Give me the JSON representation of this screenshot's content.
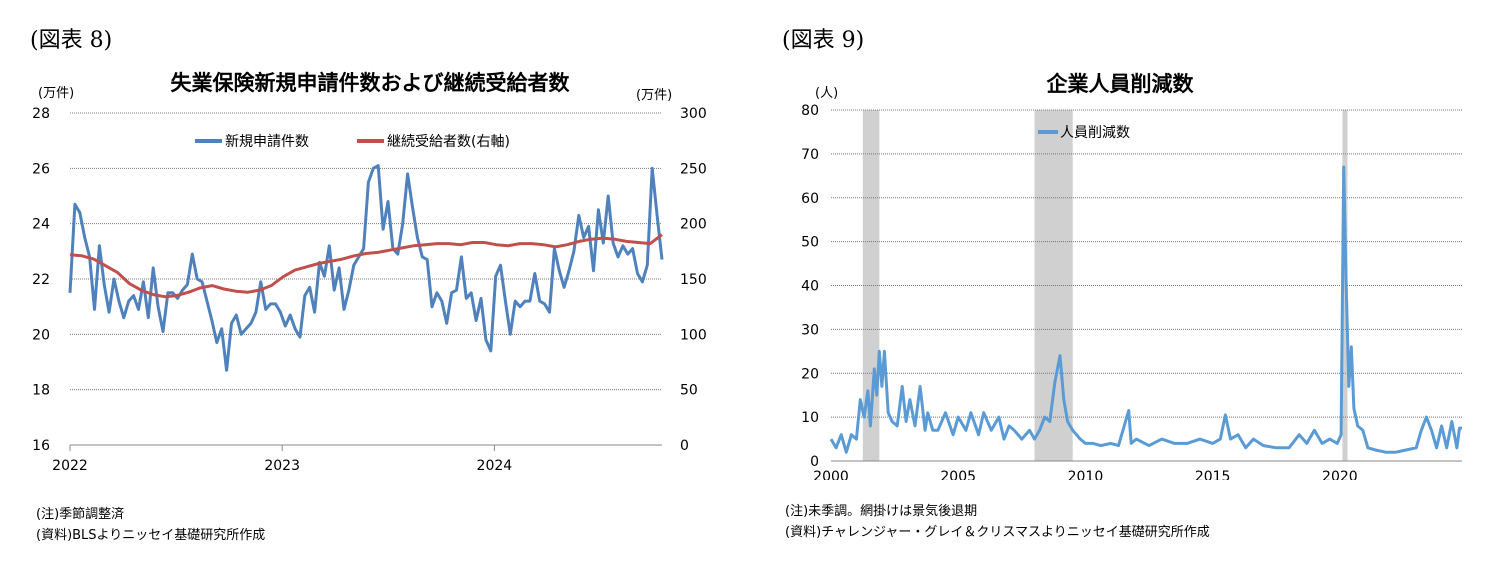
{
  "figures": {
    "left_label": "(図表 8)",
    "right_label": "(図表 9)"
  },
  "notes": {
    "left": [
      "(注)季節調整済",
      "(資料)BLSよりニッセイ基礎研究所作成"
    ],
    "right": [
      "(注)未季調。網掛けは景気後退期",
      "(資料)チャレンジャー・グレイ＆クリスマスよりニッセイ基礎研究所作成"
    ]
  },
  "colors": {
    "blue": "#4f81bd",
    "red": "#c0504d",
    "light_blue": "#5b9bd5",
    "shade": "#d0d0d0"
  },
  "chart_data": [
    {
      "type": "line",
      "title": "失業保険新規申請件数および継続受給者数",
      "ylabel": "(万件)",
      "y2label": "(万件)",
      "ylim": [
        16,
        28
      ],
      "y2lim": [
        0,
        300
      ],
      "yticks": [
        "16",
        "18",
        "20",
        "22",
        "24",
        "26",
        "28"
      ],
      "y2ticks": [
        "0",
        "50",
        "100",
        "150",
        "200",
        "250",
        "300"
      ],
      "xlim": [
        2022,
        2024.79
      ],
      "xticks": [
        "2022",
        "2023",
        "2024"
      ],
      "grid": true,
      "legend": "top-center",
      "series": [
        {
          "name": "新規申請件数",
          "axis": "left",
          "color": "#4f81bd",
          "x_start": 2022,
          "x_end": 2024.79,
          "values": [
            21.5,
            24.7,
            24.4,
            23.5,
            22.8,
            20.9,
            23.2,
            21.8,
            20.8,
            22.0,
            21.2,
            20.6,
            21.2,
            21.4,
            20.9,
            21.9,
            20.6,
            22.4,
            21.0,
            20.1,
            21.5,
            21.5,
            21.3,
            21.6,
            21.8,
            22.9,
            22.0,
            21.9,
            21.2,
            20.5,
            19.7,
            20.2,
            18.7,
            20.4,
            20.7,
            20.0,
            20.2,
            20.4,
            20.8,
            21.9,
            20.9,
            21.1,
            21.1,
            20.8,
            20.3,
            20.7,
            20.2,
            19.9,
            21.4,
            21.7,
            20.8,
            22.6,
            22.1,
            23.2,
            21.6,
            22.4,
            20.9,
            21.6,
            22.5,
            22.8,
            23.1,
            25.5,
            26.0,
            26.1,
            23.8,
            24.8,
            23.1,
            22.9,
            24.0,
            25.8,
            24.6,
            23.5,
            22.8,
            22.7,
            21.0,
            21.5,
            21.2,
            20.4,
            21.5,
            21.6,
            22.8,
            21.3,
            21.5,
            20.5,
            21.3,
            19.8,
            19.4,
            22.1,
            22.5,
            21.2,
            20.0,
            21.2,
            21.0,
            21.2,
            21.2,
            22.2,
            21.2,
            21.1,
            20.8,
            23.1,
            22.3,
            21.7,
            22.3,
            23.0,
            24.3,
            23.5,
            23.9,
            22.3,
            24.5,
            23.3,
            25.0,
            23.3,
            22.8,
            23.2,
            22.9,
            23.1,
            22.2,
            21.9,
            22.5,
            26.0,
            24.3,
            22.7
          ]
        },
        {
          "name": "継続受給者数(右軸)",
          "axis": "right",
          "color": "#c0504d",
          "x_start": 2022,
          "x_end": 2024.79,
          "values": [
            172,
            171,
            168,
            162,
            156,
            146,
            140,
            136,
            134,
            135,
            138,
            142,
            144,
            141,
            139,
            138,
            140,
            144,
            152,
            158,
            161,
            164,
            166,
            168,
            171,
            173,
            174,
            176,
            178,
            180,
            181,
            182,
            182,
            181,
            183,
            183,
            181,
            180,
            182,
            182,
            181,
            179,
            181,
            184,
            186,
            187,
            186,
            184,
            183,
            182,
            190
          ]
        }
      ]
    },
    {
      "type": "line",
      "title": "企業人員削減数",
      "ylabel": "(人)",
      "ylim": [
        0,
        80
      ],
      "yticks": [
        "0",
        "10",
        "20",
        "30",
        "40",
        "50",
        "60",
        "70",
        "80"
      ],
      "xlim": [
        2000,
        2024.8
      ],
      "xticks": [
        "2000",
        "2005",
        "2010",
        "2015",
        "2020"
      ],
      "grid": true,
      "legend": "top-center",
      "recessions": [
        [
          2001.25,
          2001.9
        ],
        [
          2008.0,
          2009.5
        ],
        [
          2020.1,
          2020.3
        ]
      ],
      "series": [
        {
          "name": "人員削減数",
          "color": "#5b9bd5",
          "x": [
            2000,
            2000.2,
            2000.4,
            2000.6,
            2000.8,
            2001,
            2001.15,
            2001.3,
            2001.45,
            2001.55,
            2001.7,
            2001.8,
            2001.9,
            2002,
            2002.1,
            2002.25,
            2002.4,
            2002.6,
            2002.8,
            2002.95,
            2003.1,
            2003.3,
            2003.5,
            2003.7,
            2003.8,
            2004,
            2004.2,
            2004.5,
            2004.8,
            2005,
            2005.3,
            2005.5,
            2005.8,
            2006,
            2006.3,
            2006.6,
            2006.8,
            2007,
            2007.2,
            2007.5,
            2007.8,
            2008,
            2008.2,
            2008.4,
            2008.6,
            2008.8,
            2009,
            2009.15,
            2009.3,
            2009.5,
            2009.8,
            2010,
            2010.3,
            2010.6,
            2011,
            2011.3,
            2011.7,
            2011.8,
            2012,
            2012.5,
            2013,
            2013.5,
            2014,
            2014.5,
            2015,
            2015.3,
            2015.5,
            2015.7,
            2016,
            2016.3,
            2016.6,
            2017,
            2017.5,
            2018,
            2018.4,
            2018.7,
            2019,
            2019.3,
            2019.6,
            2019.9,
            2020.05,
            2020.15,
            2020.25,
            2020.35,
            2020.45,
            2020.55,
            2020.7,
            2020.9,
            2021.1,
            2021.4,
            2021.8,
            2022.2,
            2022.6,
            2023,
            2023.2,
            2023.4,
            2023.6,
            2023.8,
            2024,
            2024.2,
            2024.4,
            2024.6,
            2024.7,
            2024.8
          ],
          "values": [
            5,
            3,
            6,
            2,
            6,
            5,
            14,
            10,
            16,
            8,
            21,
            15,
            25,
            17,
            25,
            11,
            9,
            8,
            17,
            9,
            14,
            8,
            17,
            7,
            11,
            7,
            7,
            11,
            6,
            10,
            7,
            11,
            6,
            11,
            7,
            10,
            5,
            8,
            7,
            5,
            7,
            5,
            7,
            10,
            9,
            18,
            24,
            14,
            9,
            7,
            5,
            4,
            4,
            3.5,
            4,
            3.5,
            11.5,
            4,
            5,
            3.5,
            5,
            4,
            4,
            5,
            4,
            5,
            10.5,
            5,
            6,
            3,
            5,
            3.5,
            3,
            3,
            6,
            4,
            7,
            4,
            5,
            4,
            6,
            67,
            40,
            17,
            26,
            12,
            8,
            7,
            3,
            2.5,
            2,
            2,
            2.5,
            3,
            7,
            10,
            7,
            3,
            8,
            3,
            9,
            3,
            7.5,
            7.5
          ]
        }
      ]
    }
  ]
}
